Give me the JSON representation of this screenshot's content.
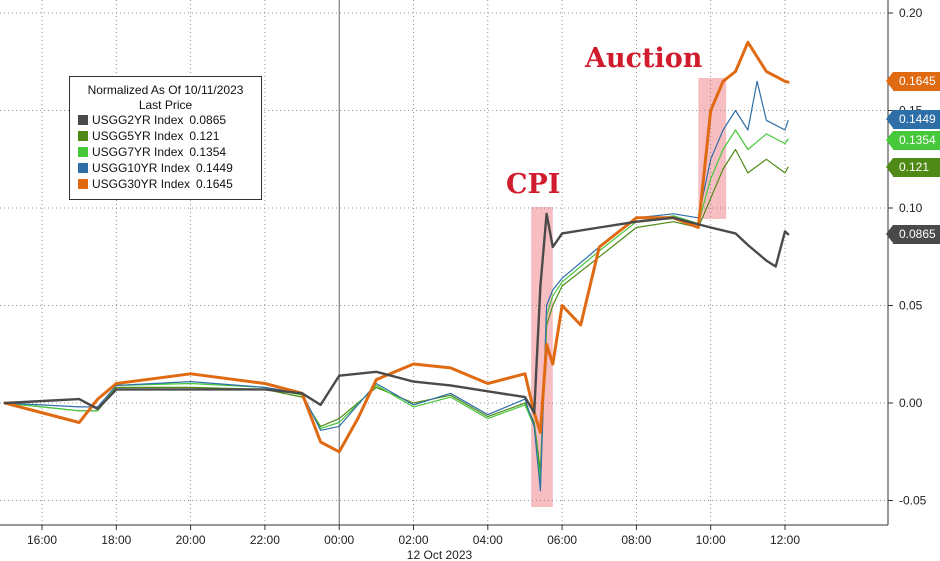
{
  "chart_data": {
    "type": "line",
    "legend": {
      "title": "Normalized As Of 10/11/2023",
      "subtitle": "Last Price",
      "placement": "top-left",
      "entries": [
        {
          "name": "USGG2YR Index",
          "value": "0.0865",
          "color": "#4a4a4a"
        },
        {
          "name": "USGG5YR Index",
          "value": "0.121",
          "color": "#4f8a16"
        },
        {
          "name": "USGG7YR Index",
          "value": "0.1354",
          "color": "#46c83a"
        },
        {
          "name": "USGG10YR Index",
          "value": "0.1449",
          "color": "#2e6fa8"
        },
        {
          "name": "USGG30YR Index",
          "value": "0.1645",
          "color": "#e06a12"
        }
      ]
    },
    "annotations": [
      {
        "text": "CPI",
        "x_start": "05:10",
        "x_end": "05:45"
      },
      {
        "text": "Auction",
        "x_start": "09:40",
        "x_end": "10:25"
      }
    ],
    "x_tick_labels": [
      "16:00",
      "18:00",
      "20:00",
      "22:00",
      "00:00",
      "02:00",
      "04:00",
      "06:00",
      "08:00",
      "10:00",
      "12:00"
    ],
    "x_date_label": "12 Oct 2023",
    "y_tick_labels": [
      "0.20",
      "0.15",
      "0.10",
      "0.05",
      "0.00",
      "-0.05"
    ],
    "ylim": [
      -0.06,
      0.21
    ],
    "grid": true,
    "series": [
      {
        "name": "USGG2YR Index",
        "color": "#4a4a4a",
        "last_label": "0.0865",
        "x": [
          "15:00",
          "17:00",
          "17:30",
          "18:00",
          "20:00",
          "22:00",
          "23:00",
          "23:30",
          "00:00",
          "01:00",
          "02:00",
          "03:00",
          "04:00",
          "05:00",
          "05:15",
          "05:25",
          "05:35",
          "05:45",
          "06:00",
          "07:00",
          "08:00",
          "09:00",
          "10:00",
          "10:40",
          "11:00",
          "11:30",
          "11:45",
          "12:00",
          "12:05"
        ],
        "values": [
          0.0,
          0.002,
          -0.003,
          0.007,
          0.007,
          0.007,
          0.005,
          -0.001,
          0.014,
          0.016,
          0.011,
          0.009,
          0.006,
          0.003,
          -0.005,
          0.06,
          0.097,
          0.08,
          0.087,
          0.09,
          0.093,
          0.095,
          0.09,
          0.087,
          0.081,
          0.073,
          0.07,
          0.088,
          0.0865
        ]
      },
      {
        "name": "USGG5YR Index",
        "color": "#4f8a16",
        "last_label": "0.121",
        "x": [
          "15:00",
          "17:00",
          "17:30",
          "18:00",
          "20:00",
          "22:00",
          "23:00",
          "23:30",
          "00:00",
          "01:00",
          "02:00",
          "03:00",
          "04:00",
          "05:00",
          "05:15",
          "05:25",
          "05:35",
          "05:45",
          "06:00",
          "07:00",
          "08:00",
          "09:00",
          "09:40",
          "10:00",
          "10:20",
          "10:40",
          "11:00",
          "11:30",
          "12:00",
          "12:05"
        ],
        "values": [
          0.0,
          -0.004,
          -0.004,
          0.008,
          0.008,
          0.007,
          0.003,
          -0.012,
          -0.008,
          0.008,
          0.0,
          0.004,
          -0.007,
          0.0,
          -0.01,
          -0.035,
          0.04,
          0.05,
          0.06,
          0.075,
          0.09,
          0.093,
          0.09,
          0.105,
          0.12,
          0.13,
          0.118,
          0.125,
          0.118,
          0.121
        ]
      },
      {
        "name": "USGG7YR Index",
        "color": "#46c83a",
        "last_label": "0.1354",
        "x": [
          "15:00",
          "17:00",
          "17:30",
          "18:00",
          "20:00",
          "22:00",
          "23:00",
          "23:30",
          "00:00",
          "01:00",
          "02:00",
          "03:00",
          "04:00",
          "05:00",
          "05:15",
          "05:25",
          "05:35",
          "05:45",
          "06:00",
          "07:00",
          "08:00",
          "09:00",
          "09:40",
          "10:00",
          "10:20",
          "10:40",
          "11:00",
          "11:30",
          "12:00",
          "12:05"
        ],
        "values": [
          0.0,
          -0.004,
          -0.004,
          0.009,
          0.01,
          0.008,
          0.004,
          -0.013,
          -0.01,
          0.009,
          -0.002,
          0.003,
          -0.008,
          -0.001,
          -0.012,
          -0.04,
          0.045,
          0.055,
          0.062,
          0.078,
          0.093,
          0.096,
          0.092,
          0.115,
          0.13,
          0.14,
          0.13,
          0.138,
          0.133,
          0.1354
        ]
      },
      {
        "name": "USGG10YR Index",
        "color": "#2e6fa8",
        "last_label": "0.1449",
        "x": [
          "15:00",
          "17:00",
          "17:30",
          "18:00",
          "20:00",
          "22:00",
          "23:00",
          "23:30",
          "00:00",
          "01:00",
          "02:00",
          "03:00",
          "04:00",
          "05:00",
          "05:15",
          "05:25",
          "05:35",
          "05:45",
          "06:00",
          "07:00",
          "08:00",
          "09:00",
          "09:40",
          "10:00",
          "10:20",
          "10:40",
          "11:00",
          "11:15",
          "11:30",
          "12:00",
          "12:05"
        ],
        "values": [
          0.0,
          -0.002,
          -0.002,
          0.009,
          0.011,
          0.008,
          0.005,
          -0.014,
          -0.012,
          0.01,
          -0.001,
          0.005,
          -0.006,
          0.002,
          -0.012,
          -0.045,
          0.05,
          0.058,
          0.064,
          0.08,
          0.095,
          0.097,
          0.095,
          0.125,
          0.14,
          0.15,
          0.14,
          0.165,
          0.145,
          0.14,
          0.1449
        ]
      },
      {
        "name": "USGG30YR Index",
        "color": "#e06a12",
        "last_label": "0.1645",
        "x": [
          "15:00",
          "17:00",
          "17:30",
          "18:00",
          "20:00",
          "22:00",
          "23:00",
          "23:30",
          "00:00",
          "00:30",
          "01:00",
          "02:00",
          "03:00",
          "04:00",
          "05:00",
          "05:15",
          "05:25",
          "05:35",
          "05:45",
          "06:00",
          "06:30",
          "07:00",
          "08:00",
          "09:00",
          "09:40",
          "10:00",
          "10:20",
          "10:40",
          "11:00",
          "11:30",
          "12:00",
          "12:05"
        ],
        "values": [
          0.0,
          -0.01,
          0.002,
          0.01,
          0.015,
          0.01,
          0.005,
          -0.02,
          -0.025,
          -0.008,
          0.012,
          0.02,
          0.018,
          0.01,
          0.015,
          -0.005,
          -0.015,
          0.03,
          0.02,
          0.05,
          0.04,
          0.08,
          0.095,
          0.095,
          0.09,
          0.15,
          0.165,
          0.17,
          0.185,
          0.17,
          0.165,
          0.1645
        ]
      }
    ]
  }
}
